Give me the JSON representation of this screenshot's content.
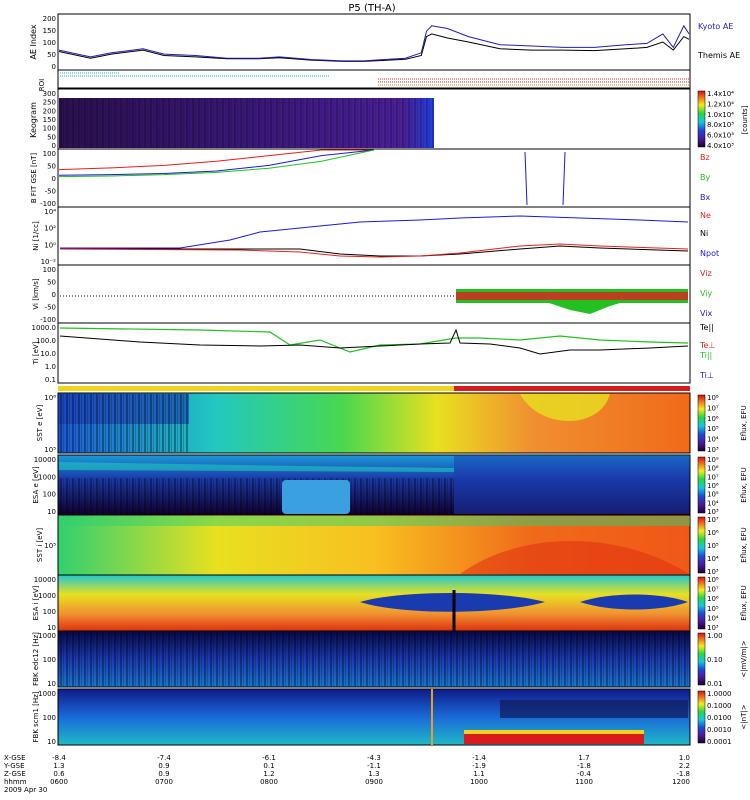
{
  "title": "P5 (TH-A)",
  "colors": {
    "kyoto": "#1f1fb0",
    "themis": "#000000",
    "bz": "#e02020",
    "by": "#22c022",
    "bx": "#1a1ad0",
    "roi_cyan": "#16b8b8",
    "roi_red": "#d03010",
    "bar_yellow": "#f2d21a",
    "bar_red": "#d81b1b"
  },
  "chart_data": [
    {
      "type": "line",
      "panel": "ae",
      "ylabel": "AE Index",
      "ylim": [
        0,
        200
      ],
      "yticks": [
        "200",
        "150",
        "100",
        "50",
        "0"
      ],
      "series": [
        {
          "name": "Kyoto AE",
          "x": [
            0,
            0.3,
            0.5,
            0.8,
            1.0,
            1.3,
            1.6,
            1.9,
            2.1,
            2.4,
            2.7,
            2.9,
            3.1,
            3.3,
            3.45,
            3.5,
            3.55,
            3.7,
            3.9,
            4.2,
            4.5,
            4.8,
            5.1,
            5.4,
            5.6,
            5.75,
            5.85,
            5.95,
            6.0
          ],
          "y": [
            70,
            45,
            60,
            75,
            55,
            50,
            40,
            40,
            45,
            35,
            30,
            30,
            35,
            40,
            60,
            140,
            160,
            150,
            120,
            90,
            85,
            80,
            80,
            90,
            95,
            130,
            80,
            160,
            130
          ]
        },
        {
          "name": "Themis AE",
          "x": [
            0,
            0.3,
            0.5,
            0.8,
            1.0,
            1.3,
            1.6,
            1.9,
            2.1,
            2.4,
            2.7,
            2.9,
            3.1,
            3.3,
            3.45,
            3.5,
            3.55,
            3.7,
            3.9,
            4.2,
            4.5,
            4.8,
            5.1,
            5.4,
            5.6,
            5.75,
            5.85,
            5.95,
            6.0
          ],
          "y": [
            65,
            40,
            55,
            70,
            50,
            45,
            38,
            38,
            42,
            33,
            28,
            28,
            32,
            36,
            50,
            120,
            130,
            115,
            100,
            75,
            70,
            70,
            68,
            75,
            80,
            100,
            70,
            120,
            110
          ]
        }
      ]
    },
    {
      "type": "table",
      "panel": "roi",
      "ylabel": "ROI"
    },
    {
      "type": "heatmap",
      "panel": "keogram",
      "ylabel": "Keogram",
      "yticks": [
        "300",
        "250",
        "200",
        "150",
        "100",
        "50",
        "0"
      ],
      "colorbar": {
        "label": "[counts]",
        "ticks": [
          "1.4x10⁴",
          "1.2x10⁴",
          "1.0x10⁴",
          "8.0x10³",
          "6.0x10³",
          "4.0x10³"
        ]
      }
    },
    {
      "type": "line",
      "panel": "bfield",
      "ylabel": "B FIT GSE [nT]",
      "ylim": [
        -100,
        100
      ],
      "yticks": [
        "100",
        "50",
        "0",
        "-50",
        "-100"
      ],
      "series": [
        {
          "name": "Bz",
          "x": [
            0,
            0.5,
            1.0,
            1.5,
            2.0,
            2.5,
            3.0
          ],
          "y": [
            30,
            36,
            45,
            60,
            80,
            100,
            120
          ]
        },
        {
          "name": "By",
          "x": [
            0,
            0.5,
            1.0,
            1.5,
            2.0,
            2.5,
            3.0
          ],
          "y": [
            5,
            7,
            12,
            20,
            35,
            60,
            105
          ]
        },
        {
          "name": "Bx",
          "x": [
            0,
            0.5,
            1.0,
            1.5,
            2.0,
            2.5,
            3.0
          ],
          "y": [
            10,
            12,
            16,
            25,
            45,
            80,
            120
          ]
        }
      ]
    },
    {
      "type": "line",
      "panel": "density",
      "ylabel": "Ni [1/cc]",
      "yticks": [
        "10⁴",
        "10²",
        "10⁰",
        "10⁻²"
      ],
      "series": [
        {
          "name": "Ne",
          "x": [
            0,
            1,
            2,
            3,
            4,
            5,
            6
          ],
          "y": [
            0,
            0,
            0,
            -1,
            0.5,
            0,
            0
          ]
        },
        {
          "name": "Ni",
          "x": [
            0,
            1,
            2,
            3,
            4,
            5,
            6
          ],
          "y": [
            0,
            0.2,
            0.5,
            -1,
            0,
            0.3,
            0
          ]
        },
        {
          "name": "Npot",
          "x": [
            0,
            1,
            2,
            3,
            4,
            5,
            6
          ],
          "y": [
            0,
            2,
            3,
            3.5,
            4,
            3.5,
            3
          ]
        }
      ]
    },
    {
      "type": "line",
      "panel": "velocity",
      "ylabel": "Vi [km/s]",
      "ylim": [
        -150,
        150
      ],
      "yticks": [
        "100",
        "50",
        "0",
        "-50",
        "-100"
      ],
      "series": [
        {
          "name": "Viz"
        },
        {
          "name": "Viy"
        },
        {
          "name": "Vix"
        }
      ]
    },
    {
      "type": "line",
      "panel": "temperature",
      "ylabel": "Ti [eV]",
      "yticks": [
        "1000.0",
        "100.0",
        "10.0",
        "1.0",
        "0.1"
      ],
      "series": [
        {
          "name": "Te||"
        },
        {
          "name": "Te⊥"
        },
        {
          "name": "Ti||"
        },
        {
          "name": "Ti⊥"
        }
      ]
    },
    {
      "type": "heatmap",
      "panel": "sst_e",
      "ylabel": "SST e [eV]",
      "yticks": [
        "10⁶",
        "10⁵"
      ],
      "colorbar": {
        "label": "Eflux, EFU",
        "ticks": [
          "10⁸",
          "10⁷",
          "10⁶",
          "10⁵",
          "10⁴",
          "10³"
        ]
      }
    },
    {
      "type": "heatmap",
      "panel": "esa_e",
      "ylabel": "ESA e [eV]",
      "yticks": [
        "10000",
        "1000",
        "100",
        "10"
      ],
      "colorbar": {
        "label": "Eflux, EFU",
        "ticks": [
          "10⁹",
          "10⁸",
          "10⁷",
          "10⁶",
          "10⁵",
          "10⁴",
          "10³"
        ]
      }
    },
    {
      "type": "heatmap",
      "panel": "sst_i",
      "ylabel": "SST i [eV]",
      "yticks": [
        "10⁵"
      ],
      "colorbar": {
        "label": "Eflux, EFU",
        "ticks": [
          "10⁷",
          "10⁶",
          "10⁵",
          "10⁴",
          "10³"
        ]
      }
    },
    {
      "type": "heatmap",
      "panel": "esa_i",
      "ylabel": "ESA i [eV]",
      "yticks": [
        "10000",
        "1000",
        "100",
        "10"
      ],
      "colorbar": {
        "label": "Eflux, EFU",
        "ticks": [
          "10⁸",
          "10⁷",
          "10⁶",
          "10⁵",
          "10⁴",
          "10³"
        ]
      }
    },
    {
      "type": "heatmap",
      "panel": "fbk_e",
      "ylabel": "FBK edc12 [Hz]",
      "yticks": [
        "1000",
        "100",
        "10"
      ],
      "colorbar": {
        "label": "<|mV/m|>",
        "ticks": [
          "1.00",
          "0.10",
          "0.01"
        ]
      }
    },
    {
      "type": "heatmap",
      "panel": "fbk_b",
      "ylabel": "FBK scm1 [Hz]",
      "yticks": [
        "1000",
        "100",
        "10"
      ],
      "colorbar": {
        "label": "<|nT|>",
        "ticks": [
          "1.0000",
          "0.1000",
          "0.0100",
          "0.0010",
          "0.0001"
        ]
      }
    }
  ],
  "legends": {
    "ae": [
      "Kyoto AE",
      "Themis AE"
    ],
    "bfield": [
      "Bz",
      "By",
      "Bx"
    ],
    "density": [
      "Ne",
      "Ni",
      "Npot"
    ],
    "velocity": [
      "Viz",
      "Viy",
      "Vix"
    ],
    "temperature": [
      "Te||",
      "Te⊥",
      "Ti||",
      "Ti⊥"
    ]
  },
  "axis": {
    "row_labels": [
      "X-GSE",
      "Y-GSE",
      "Z-GSE",
      "hhmm",
      "2009 Apr 30"
    ],
    "columns": [
      {
        "xg": "-8.4",
        "yg": "1.3",
        "zg": "0.6",
        "t": "0600"
      },
      {
        "xg": "-7.4",
        "yg": "0.9",
        "zg": "0.9",
        "t": "0700"
      },
      {
        "xg": "-6.1",
        "yg": "0.1",
        "zg": "1.2",
        "t": "0800"
      },
      {
        "xg": "-4.3",
        "yg": "-1.1",
        "zg": "1.3",
        "t": "0900"
      },
      {
        "xg": "-1.4",
        "yg": "-1.9",
        "zg": "1.1",
        "t": "1000"
      },
      {
        "xg": "1.7",
        "yg": "-1.8",
        "zg": "-0.4",
        "t": "1100"
      },
      {
        "xg": "1.0",
        "yg": "2.2",
        "zg": "-1.8",
        "t": "1200"
      }
    ]
  }
}
